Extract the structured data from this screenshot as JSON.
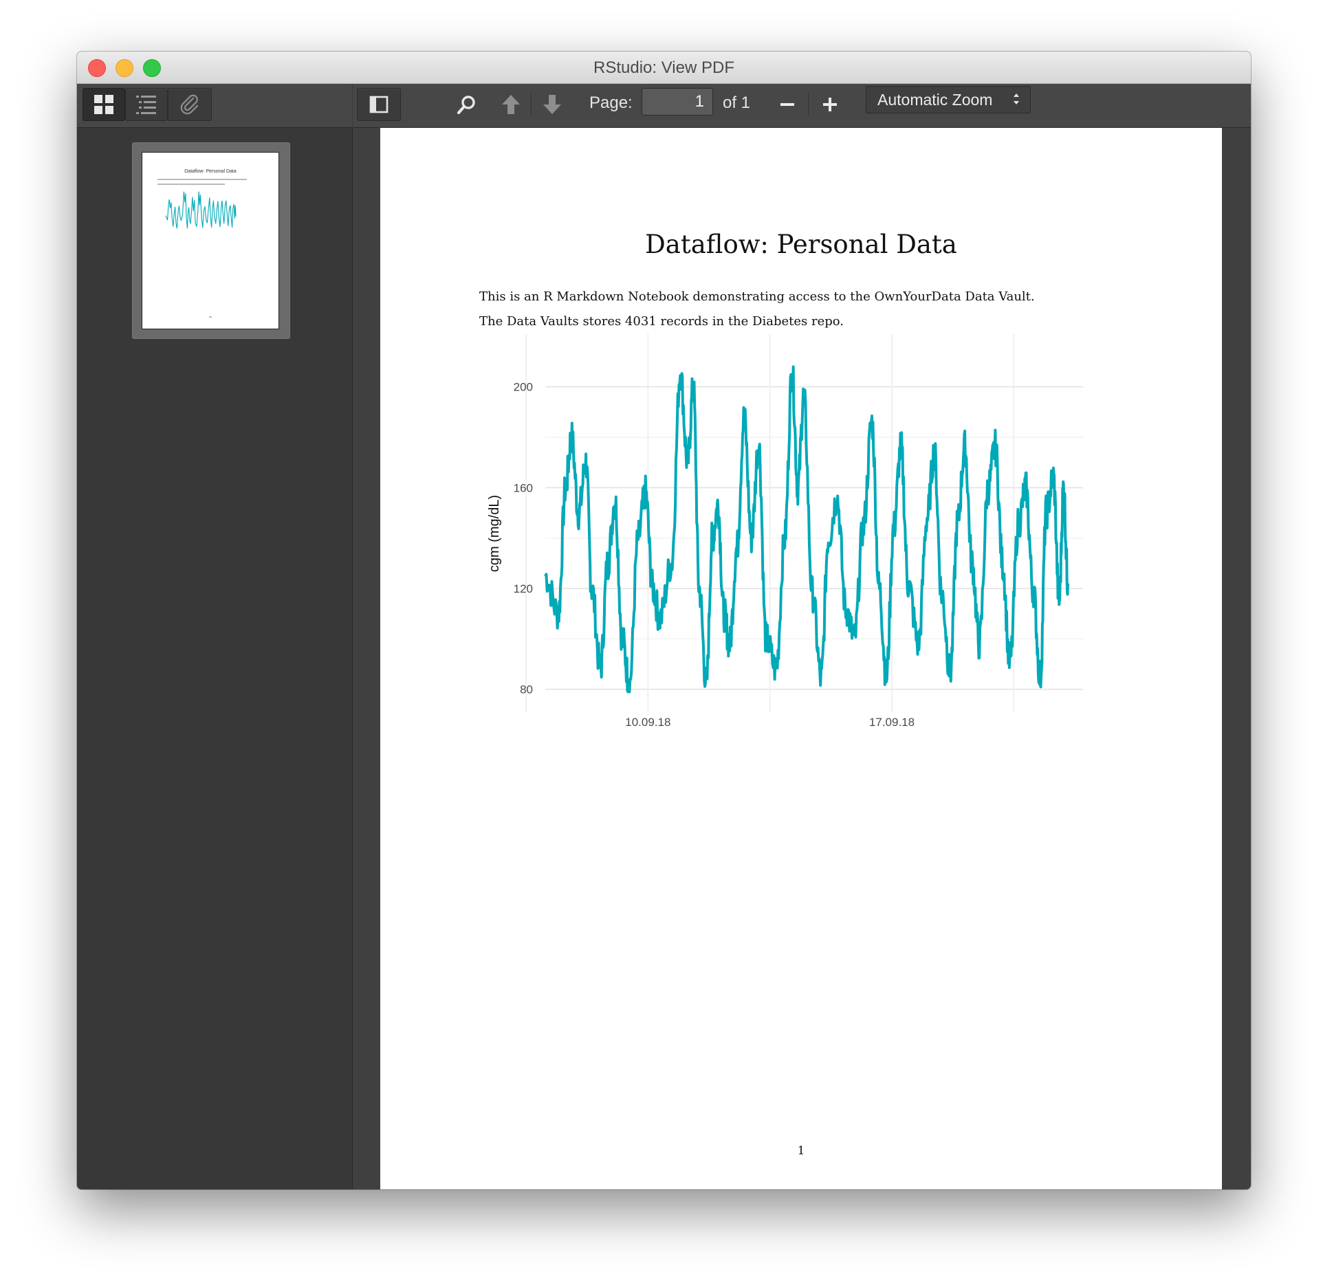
{
  "window": {
    "title": "RStudio: View PDF"
  },
  "sidebar_toolbar": {
    "thumbnails_icon": "thumbnails-icon",
    "outline_icon": "outline-icon",
    "attachments_icon": "paperclip-icon"
  },
  "toolbar": {
    "page_label": "Page:",
    "page_value": "1",
    "page_total": "of 1",
    "zoom_value": "Automatic Zoom"
  },
  "document": {
    "title": "Dataflow: Personal Data",
    "para1": "This is an R Markdown Notebook demonstrating access to the OwnYourData Data Vault.",
    "para2": "The Data Vaults stores 4031 records in the Diabetes repo.",
    "page_number": "1"
  },
  "chart_data": {
    "type": "line",
    "title": "",
    "xlabel": "",
    "ylabel": "cgm (mg/dL)",
    "ylim": [
      78,
      210
    ],
    "y_ticks": [
      80,
      120,
      160,
      200
    ],
    "x_ticks": [
      "10.09.18",
      "17.09.18"
    ],
    "x_start": "2018-09-06T12:00",
    "x_end": "2018-09-21T12:00",
    "color": "#00a9b8",
    "series": [
      {
        "x": [
          "2018-09-06T12:00",
          "2018-09-06T21:00",
          "2018-09-07T02:00",
          "2018-09-07T06:00",
          "2018-09-07T11:00",
          "2018-09-07T16:00",
          "2018-09-07T20:00",
          "2018-09-08T02:00",
          "2018-09-08T07:00",
          "2018-09-08T12:00",
          "2018-09-08T17:00",
          "2018-09-08T22:00",
          "2018-09-09T04:00",
          "2018-09-09T09:00",
          "2018-09-09T14:00",
          "2018-09-09T19:00",
          "2018-09-10T03:00",
          "2018-09-10T09:00",
          "2018-09-10T14:00",
          "2018-09-10T18:00",
          "2018-09-10T22:00",
          "2018-09-11T03:00",
          "2018-09-11T07:00",
          "2018-09-11T11:00",
          "2018-09-11T15:00",
          "2018-09-11T19:00",
          "2018-09-12T00:00",
          "2018-09-12T05:00",
          "2018-09-12T10:00",
          "2018-09-12T15:00",
          "2018-09-12T20:00",
          "2018-09-13T03:00",
          "2018-09-13T09:00",
          "2018-09-13T14:00",
          "2018-09-13T18:00",
          "2018-09-13T22:00",
          "2018-09-14T04:00",
          "2018-09-14T10:00",
          "2018-09-14T15:00",
          "2018-09-14T21:00",
          "2018-09-15T03:00",
          "2018-09-15T09:00",
          "2018-09-15T15:00",
          "2018-09-15T21:00",
          "2018-09-16T02:00",
          "2018-09-16T07:00",
          "2018-09-16T12:00",
          "2018-09-16T17:00",
          "2018-09-16T22:00",
          "2018-09-17T05:00",
          "2018-09-17T11:00",
          "2018-09-17T16:00",
          "2018-09-17T21:00",
          "2018-09-18T03:00",
          "2018-09-18T08:00",
          "2018-09-18T13:00",
          "2018-09-18T18:00",
          "2018-09-18T23:00",
          "2018-09-19T05:00",
          "2018-09-19T10:00",
          "2018-09-19T15:00",
          "2018-09-19T20:00",
          "2018-09-20T02:00",
          "2018-09-20T07:00",
          "2018-09-20T12:00",
          "2018-09-20T17:00",
          "2018-09-20T21:00",
          "2018-09-21T02:00",
          "2018-09-21T06:00",
          "2018-09-21T09:00",
          "2018-09-21T12:00"
        ],
        "values": [
          125,
          110,
          160,
          180,
          150,
          170,
          120,
          88,
          130,
          155,
          100,
          82,
          140,
          158,
          120,
          108,
          130,
          206,
          170,
          200,
          120,
          82,
          140,
          153,
          110,
          98,
          136,
          188,
          140,
          178,
          100,
          88,
          140,
          206,
          160,
          196,
          118,
          84,
          140,
          156,
          112,
          100,
          144,
          186,
          120,
          85,
          144,
          176,
          122,
          98,
          148,
          174,
          118,
          87,
          146,
          176,
          130,
          98,
          160,
          176,
          130,
          90,
          146,
          160,
          120,
          85,
          150,
          164,
          115,
          160,
          122
        ]
      }
    ]
  }
}
